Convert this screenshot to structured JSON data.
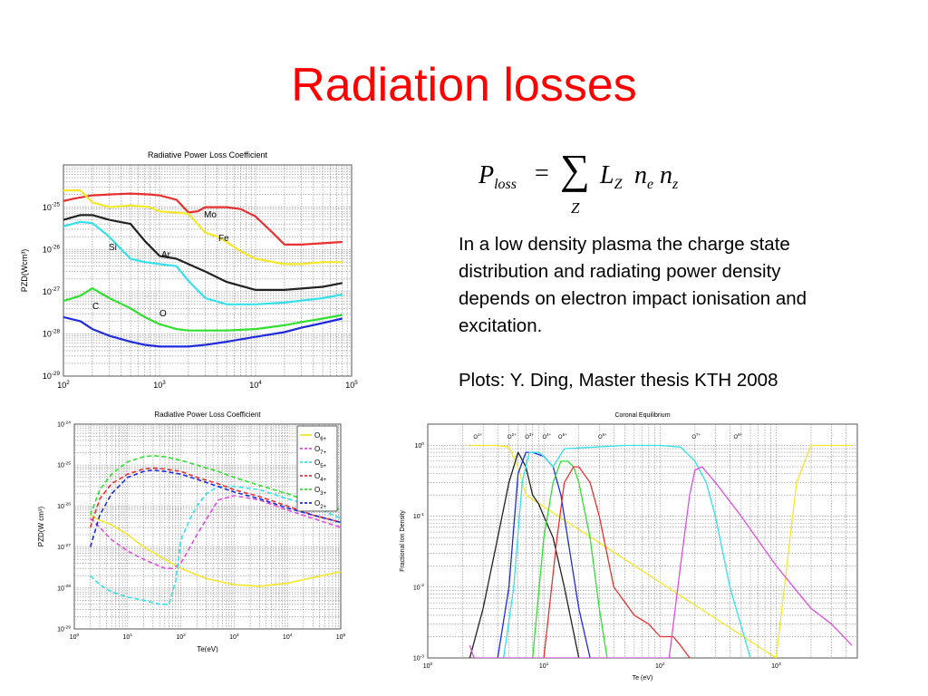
{
  "title": "Radiation losses",
  "formula": {
    "lhs": "P",
    "lhs_sub": "loss",
    "eq": "=",
    "sum": "∑",
    "sum_index": "Z",
    "term": [
      [
        "L",
        "Z"
      ],
      [
        "n",
        "e"
      ],
      [
        "n",
        "z"
      ]
    ]
  },
  "body_text": "In a low density plasma the charge state distribution and radiating power density depends on electron impact ionisation and excitation.",
  "credit": "Plots: Y. Ding, Master thesis KTH 2008",
  "colors": {
    "title": "#ff0000",
    "red": "#e83030",
    "yellow": "#f5e72a",
    "black": "#222222",
    "cyan": "#33e1e8",
    "green": "#2fe02f",
    "blue": "#1f2bdb",
    "magenta": "#e04ee0"
  },
  "chart_data": [
    {
      "type": "line",
      "title": "Radiative Power Loss Coefficient",
      "xlabel": "",
      "ylabel": "PZD(Wcm³)",
      "xscale": "log",
      "yscale": "log",
      "xlim": [
        100,
        100000
      ],
      "ylim": [
        1e-29,
        1e-24
      ],
      "xticks": [
        {
          "b": "10",
          "e": "2"
        },
        {
          "b": "10",
          "e": "3"
        },
        {
          "b": "10",
          "e": "4"
        },
        {
          "b": "10",
          "e": "5"
        }
      ],
      "yticks": [
        {
          "b": "10",
          "e": "-29"
        },
        {
          "b": "10",
          "e": "-28"
        },
        {
          "b": "10",
          "e": "-27"
        },
        {
          "b": "10",
          "e": "-26"
        },
        {
          "b": "10",
          "e": "-25"
        }
      ],
      "grid": true,
      "series": [
        {
          "name": "Mo",
          "color": "#e83030",
          "x": [
            100,
            130,
            200,
            300,
            500,
            800,
            1000,
            1500,
            2000,
            2500,
            3000,
            5000,
            7000,
            10000,
            15000,
            20000,
            30000,
            50000,
            80000
          ],
          "y": [
            1.4e-25,
            1.6e-25,
            1.9e-25,
            2e-25,
            2.1e-25,
            2e-25,
            1.9e-25,
            1.5e-25,
            7.5e-26,
            8e-26,
            1e-25,
            1e-25,
            9e-26,
            6e-26,
            2.5e-26,
            1.3e-26,
            1.3e-26,
            1.4e-26,
            1.5e-26
          ]
        },
        {
          "name": "Fe",
          "color": "#f5e72a",
          "x": [
            100,
            150,
            200,
            300,
            500,
            800,
            1000,
            2000,
            3000,
            4000,
            5000,
            7000,
            10000,
            20000,
            30000,
            50000,
            80000
          ],
          "y": [
            2.5e-25,
            2.5e-25,
            1.3e-25,
            1e-25,
            1.1e-25,
            1e-25,
            8e-26,
            7e-26,
            2.5e-26,
            2e-26,
            1.5e-26,
            9e-27,
            6e-27,
            4.5e-27,
            4.5e-27,
            5e-27,
            5e-27
          ]
        },
        {
          "name": "Ar",
          "color": "#222222",
          "x": [
            100,
            150,
            200,
            300,
            500,
            700,
            1000,
            1500,
            2000,
            3000,
            5000,
            10000,
            20000,
            50000,
            80000
          ],
          "y": [
            5e-26,
            6.5e-26,
            6.5e-26,
            5e-26,
            4e-26,
            1.6e-26,
            7e-27,
            6e-27,
            4.5e-27,
            3e-27,
            1.7e-27,
            1.1e-27,
            1.1e-27,
            1.3e-27,
            1.6e-27
          ]
        },
        {
          "name": "Si",
          "color": "#33e1e8",
          "x": [
            100,
            150,
            200,
            300,
            400,
            500,
            700,
            1000,
            1500,
            2000,
            3000,
            5000,
            10000,
            20000,
            50000,
            80000
          ],
          "y": [
            3.5e-26,
            4.5e-26,
            4.2e-26,
            2e-26,
            1e-26,
            6e-27,
            5e-27,
            4.5e-27,
            4e-27,
            1.8e-27,
            7e-28,
            5e-28,
            5e-28,
            5.5e-28,
            7e-28,
            8.5e-28
          ]
        },
        {
          "name": "C",
          "color": "#2fe02f",
          "x": [
            100,
            150,
            200,
            300,
            500,
            700,
            1000,
            1500,
            2000,
            3000,
            5000,
            10000,
            20000,
            30000,
            50000,
            80000
          ],
          "y": [
            6e-28,
            8e-28,
            1.2e-27,
            7e-28,
            4e-28,
            2.5e-28,
            1.7e-28,
            1.3e-28,
            1.2e-28,
            1.2e-28,
            1.2e-28,
            1.3e-28,
            1.6e-28,
            1.9e-28,
            2.3e-28,
            2.8e-28
          ]
        },
        {
          "name": "O",
          "color": "#1f2bdb",
          "x": [
            100,
            150,
            200,
            300,
            500,
            700,
            1000,
            2000,
            3000,
            5000,
            10000,
            20000,
            30000,
            50000,
            80000
          ],
          "y": [
            2.5e-28,
            2e-28,
            1.3e-28,
            9e-29,
            6.5e-29,
            5.5e-29,
            5e-29,
            5e-29,
            5.5e-29,
            6.5e-29,
            8.5e-29,
            1.1e-28,
            1.4e-28,
            1.8e-28,
            2.3e-28
          ]
        }
      ],
      "annotations": [
        "Mo",
        "Fe",
        "Si",
        "Ar",
        "C",
        "O"
      ]
    },
    {
      "type": "line",
      "title": "Radiative Power Loss Coefficient",
      "xlabel": "Te(eV)",
      "ylabel": "PZD(W cm³)",
      "xscale": "log",
      "yscale": "log",
      "xlim": [
        1,
        100000
      ],
      "ylim": [
        1e-29,
        1e-24
      ],
      "xticks": [
        {
          "b": "10",
          "e": "0"
        },
        {
          "b": "10",
          "e": "1"
        },
        {
          "b": "10",
          "e": "2"
        },
        {
          "b": "10",
          "e": "3"
        },
        {
          "b": "10",
          "e": "4"
        },
        {
          "b": "10",
          "e": "5"
        }
      ],
      "yticks": [
        {
          "b": "10",
          "e": "-29"
        },
        {
          "b": "10",
          "e": "-28"
        },
        {
          "b": "10",
          "e": "-27"
        },
        {
          "b": "10",
          "e": "-26"
        },
        {
          "b": "10",
          "e": "-25"
        },
        {
          "b": "10",
          "e": "-24"
        }
      ],
      "grid": true,
      "legend_position": "top-right",
      "series": [
        {
          "name": "O",
          "sub": "6+",
          "color": "#f5e72a",
          "dash": false,
          "x": [
            2,
            3,
            5,
            10,
            20,
            50,
            100,
            300,
            1000,
            3000,
            10000,
            30000,
            100000
          ],
          "y": [
            6e-27,
            4.5e-27,
            3.5e-27,
            2e-27,
            1e-27,
            5e-28,
            3e-28,
            1.7e-28,
            1.2e-28,
            1.1e-28,
            1.3e-28,
            1.8e-28,
            2.5e-28
          ]
        },
        {
          "name": "O",
          "sub": "7+",
          "color": "#e04ee0",
          "dash": true,
          "x": [
            2,
            3,
            5,
            10,
            20,
            50,
            70,
            100,
            200,
            500,
            1000,
            3000,
            10000,
            30000,
            100000
          ],
          "y": [
            5e-27,
            3e-27,
            1.5e-27,
            8e-28,
            5e-28,
            3e-28,
            3e-28,
            4e-28,
            2e-27,
            1.4e-26,
            1.8e-26,
            1.4e-26,
            8e-27,
            5e-27,
            3e-27
          ]
        },
        {
          "name": "O",
          "sub": "5+",
          "color": "#33e1e8",
          "dash": true,
          "x": [
            2,
            3,
            5,
            10,
            20,
            40,
            60,
            80,
            100,
            150,
            200,
            300,
            500,
            1000,
            3000,
            10000,
            30000,
            100000
          ],
          "y": [
            2e-28,
            1.2e-28,
            8e-29,
            6e-29,
            5e-29,
            4e-29,
            4e-29,
            1.5e-28,
            1.5e-27,
            5e-27,
            1e-26,
            2e-26,
            3e-26,
            3e-26,
            2.5e-26,
            1.5e-26,
            1e-26,
            5e-27
          ]
        },
        {
          "name": "O",
          "sub": "4+",
          "color": "#e83030",
          "dash": true,
          "x": [
            2,
            3,
            5,
            10,
            20,
            30,
            50,
            100,
            200,
            500,
            1000,
            3000,
            10000,
            30000,
            100000
          ],
          "y": [
            3e-27,
            1.5e-26,
            3.5e-26,
            6e-26,
            8e-26,
            8.5e-26,
            8e-26,
            7e-26,
            5e-26,
            3.5e-26,
            2.5e-26,
            1.7e-26,
            1e-26,
            6e-27,
            4e-27
          ]
        },
        {
          "name": "O",
          "sub": "3+",
          "color": "#2fe02f",
          "dash": true,
          "x": [
            2,
            3,
            5,
            10,
            20,
            30,
            50,
            100,
            200,
            500,
            1000,
            3000,
            10000,
            30000,
            100000
          ],
          "y": [
            6e-27,
            2.5e-26,
            6e-26,
            1.2e-25,
            1.6e-25,
            1.7e-25,
            1.6e-25,
            1.3e-25,
            1e-25,
            7e-26,
            5e-26,
            3.2e-26,
            2e-26,
            1.2e-26,
            8e-27
          ]
        },
        {
          "name": "O",
          "sub": "2+",
          "color": "#1f2bdb",
          "dash": true,
          "x": [
            2,
            3,
            5,
            10,
            20,
            30,
            50,
            100,
            200,
            500,
            1000,
            3000,
            10000,
            30000,
            100000
          ],
          "y": [
            1e-27,
            6e-27,
            2e-26,
            5e-26,
            7e-26,
            7.5e-26,
            7e-26,
            6e-26,
            4.5e-26,
            3e-26,
            2.2e-26,
            1.5e-26,
            9e-27,
            6e-27,
            4e-27
          ]
        }
      ]
    },
    {
      "type": "line",
      "title": "Coronal Equilibrium",
      "xlabel": "Te (eV)",
      "ylabel": "Fractional Ion Density",
      "xscale": "log",
      "yscale": "log",
      "xlim": [
        1,
        5000
      ],
      "ylim": [
        0.001,
        2
      ],
      "xticks": [
        {
          "b": "10",
          "e": "0"
        },
        {
          "b": "10",
          "e": "1"
        },
        {
          "b": "10",
          "e": "2"
        },
        {
          "b": "10",
          "e": "3"
        }
      ],
      "yticks": [
        {
          "b": "10",
          "e": "-3"
        },
        {
          "b": "10",
          "e": "-2"
        },
        {
          "b": "10",
          "e": "-1"
        },
        {
          "b": "10",
          "e": "0"
        }
      ],
      "grid": true,
      "ion_labels": [
        {
          "x": 2.7,
          "b": "O",
          "sup": "1+"
        },
        {
          "x": 5.3,
          "b": "O",
          "sup": "2+"
        },
        {
          "x": 7.5,
          "b": "O",
          "sup": "3+"
        },
        {
          "x": 10.6,
          "b": "O",
          "sup": "4+"
        },
        {
          "x": 14.5,
          "b": "O",
          "sup": "5+"
        },
        {
          "x": 32,
          "b": "O",
          "sup": "6+"
        },
        {
          "x": 205,
          "b": "O",
          "sup": "7+"
        },
        {
          "x": 470,
          "b": "O",
          "sup": "8+"
        }
      ],
      "series": [
        {
          "name": "O7+ (yellow)",
          "color": "#f5e72a",
          "x": [
            2.3,
            3,
            4,
            5,
            6,
            7,
            1000,
            1500,
            2000,
            3000,
            4000,
            4500
          ],
          "y": [
            1.0,
            1.0,
            1.0,
            0.95,
            0.5,
            0.2,
            0.001,
            0.3,
            1.0,
            1.0,
            1.0,
            1.0
          ]
        },
        {
          "name": "O1+ (black)",
          "color": "#222222",
          "x": [
            2.3,
            3,
            4,
            5,
            6,
            7,
            8,
            9,
            10,
            12,
            15,
            20
          ],
          "y": [
            0.001,
            0.005,
            0.05,
            0.3,
            0.8,
            0.5,
            0.2,
            0.15,
            0.1,
            0.05,
            0.01,
            0.001
          ]
        },
        {
          "name": "O2+ (blue)",
          "color": "#1f2bdb",
          "x": [
            4,
            5,
            6,
            7,
            8,
            10,
            12,
            14,
            16,
            20,
            25
          ],
          "y": [
            0.001,
            0.01,
            0.4,
            0.8,
            0.8,
            0.7,
            0.5,
            0.2,
            0.05,
            0.005,
            0.001
          ]
        },
        {
          "name": "O3+ (cyan)",
          "color": "#33e1e8",
          "x": [
            4.5,
            5.5,
            6.5,
            7.5,
            9,
            10,
            12,
            15,
            50,
            100,
            150,
            200,
            250,
            300,
            400,
            600
          ],
          "y": [
            0.001,
            0.01,
            0.3,
            0.8,
            0.8,
            0.7,
            0.5,
            0.9,
            1.0,
            1.0,
            0.95,
            0.6,
            0.3,
            0.1,
            0.01,
            0.001
          ]
        },
        {
          "name": "O4+ (green)",
          "color": "#2fe02f",
          "x": [
            8,
            10,
            12,
            14,
            16,
            18,
            20,
            25,
            30,
            35
          ],
          "y": [
            0.001,
            0.05,
            0.3,
            0.6,
            0.6,
            0.5,
            0.3,
            0.05,
            0.005,
            0.001
          ]
        },
        {
          "name": "O5+ (red)",
          "color": "#e83030",
          "x": [
            10,
            13,
            15,
            18,
            20,
            25,
            30,
            40,
            60,
            80,
            100,
            130,
            150,
            180
          ],
          "y": [
            0.001,
            0.05,
            0.3,
            0.5,
            0.5,
            0.3,
            0.1,
            0.01,
            0.004,
            0.003,
            0.002,
            0.002,
            0.0015,
            0.001
          ]
        },
        {
          "name": "O6+ (magenta)",
          "color": "#e04ee0",
          "x": [
            2.3,
            2.5,
            120,
            150,
            180,
            200,
            230,
            300,
            500,
            1000,
            2000,
            3000,
            4500
          ],
          "y": [
            0.0015,
            0.001,
            0.001,
            0.02,
            0.2,
            0.45,
            0.5,
            0.3,
            0.1,
            0.02,
            0.005,
            0.003,
            0.0015
          ]
        }
      ]
    }
  ]
}
